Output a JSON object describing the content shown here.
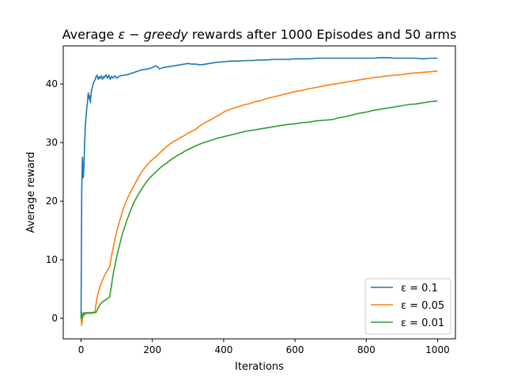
{
  "chart_data": {
    "type": "line",
    "title": {
      "prefix": "Average ",
      "math": "ε − greedy",
      "suffix": " rewards after 1000 Episodes and 50 arms"
    },
    "xlabel": "Iterations",
    "ylabel": "Average reward",
    "xlim": [
      -50,
      1050
    ],
    "ylim": [
      -3.5,
      46.5
    ],
    "xticks": [
      0,
      200,
      400,
      600,
      800,
      1000
    ],
    "yticks": [
      0,
      10,
      20,
      30,
      40
    ],
    "grid": false,
    "legend_position": "lower-right",
    "series": [
      {
        "name": "ε = 0.1",
        "color": "#1f77b4",
        "points": [
          [
            0,
            0
          ],
          [
            2,
            22
          ],
          [
            4,
            27.5
          ],
          [
            6,
            24
          ],
          [
            8,
            26
          ],
          [
            10,
            30
          ],
          [
            12,
            33
          ],
          [
            14,
            34.5
          ],
          [
            16,
            36
          ],
          [
            18,
            37
          ],
          [
            20,
            38.5
          ],
          [
            22,
            37.5
          ],
          [
            24,
            38
          ],
          [
            26,
            36.8
          ],
          [
            28,
            38.5
          ],
          [
            30,
            39
          ],
          [
            32,
            39.6
          ],
          [
            35,
            40.2
          ],
          [
            38,
            40.6
          ],
          [
            40,
            40.8
          ],
          [
            42,
            41.3
          ],
          [
            45,
            41.5
          ],
          [
            48,
            40.8
          ],
          [
            50,
            41.2
          ],
          [
            53,
            40.9
          ],
          [
            56,
            41.4
          ],
          [
            60,
            40.8
          ],
          [
            63,
            41.3
          ],
          [
            66,
            41.1
          ],
          [
            70,
            41.6
          ],
          [
            74,
            41.0
          ],
          [
            78,
            41.5
          ],
          [
            82,
            40.8
          ],
          [
            86,
            41.3
          ],
          [
            90,
            41.0
          ],
          [
            95,
            41.4
          ],
          [
            100,
            41.0
          ],
          [
            110,
            41.4
          ],
          [
            120,
            41.5
          ],
          [
            130,
            41.6
          ],
          [
            140,
            41.8
          ],
          [
            150,
            42.0
          ],
          [
            160,
            42.2
          ],
          [
            170,
            42.4
          ],
          [
            180,
            42.5
          ],
          [
            190,
            42.6
          ],
          [
            200,
            42.8
          ],
          [
            205,
            43.0
          ],
          [
            210,
            43.1
          ],
          [
            215,
            42.9
          ],
          [
            220,
            42.6
          ],
          [
            230,
            42.8
          ],
          [
            240,
            42.9
          ],
          [
            250,
            43.0
          ],
          [
            260,
            43.1
          ],
          [
            270,
            43.2
          ],
          [
            280,
            43.3
          ],
          [
            290,
            43.4
          ],
          [
            300,
            43.5
          ],
          [
            310,
            43.4
          ],
          [
            320,
            43.4
          ],
          [
            330,
            43.3
          ],
          [
            340,
            43.3
          ],
          [
            350,
            43.4
          ],
          [
            360,
            43.5
          ],
          [
            380,
            43.7
          ],
          [
            400,
            43.8
          ],
          [
            420,
            43.9
          ],
          [
            440,
            43.9
          ],
          [
            460,
            44.0
          ],
          [
            480,
            44.0
          ],
          [
            500,
            44.1
          ],
          [
            520,
            44.1
          ],
          [
            540,
            44.2
          ],
          [
            560,
            44.2
          ],
          [
            580,
            44.2
          ],
          [
            600,
            44.3
          ],
          [
            620,
            44.3
          ],
          [
            640,
            44.3
          ],
          [
            660,
            44.4
          ],
          [
            680,
            44.4
          ],
          [
            700,
            44.4
          ],
          [
            720,
            44.4
          ],
          [
            740,
            44.4
          ],
          [
            760,
            44.4
          ],
          [
            780,
            44.4
          ],
          [
            800,
            44.4
          ],
          [
            820,
            44.4
          ],
          [
            840,
            44.5
          ],
          [
            860,
            44.5
          ],
          [
            880,
            44.4
          ],
          [
            900,
            44.4
          ],
          [
            920,
            44.4
          ],
          [
            940,
            44.4
          ],
          [
            960,
            44.3
          ],
          [
            980,
            44.4
          ],
          [
            1000,
            44.4
          ]
        ]
      },
      {
        "name": "ε = 0.05",
        "color": "#ff7f0e",
        "points": [
          [
            0,
            0
          ],
          [
            2,
            -1.2
          ],
          [
            4,
            0.2
          ],
          [
            6,
            0.5
          ],
          [
            8,
            0.8
          ],
          [
            10,
            0.6
          ],
          [
            14,
            0.9
          ],
          [
            18,
            0.8
          ],
          [
            22,
            1.0
          ],
          [
            26,
            0.9
          ],
          [
            30,
            1.0
          ],
          [
            34,
            1.0
          ],
          [
            38,
            1.1
          ],
          [
            40,
            1.5
          ],
          [
            42,
            2.5
          ],
          [
            45,
            3.5
          ],
          [
            50,
            4.8
          ],
          [
            55,
            5.8
          ],
          [
            60,
            6.5
          ],
          [
            65,
            7.2
          ],
          [
            70,
            7.8
          ],
          [
            75,
            8.3
          ],
          [
            80,
            8.8
          ],
          [
            85,
            10.5
          ],
          [
            90,
            12.0
          ],
          [
            95,
            13.5
          ],
          [
            100,
            14.8
          ],
          [
            105,
            16.0
          ],
          [
            110,
            17.0
          ],
          [
            115,
            18.0
          ],
          [
            120,
            19.0
          ],
          [
            130,
            20.5
          ],
          [
            140,
            21.7
          ],
          [
            150,
            22.8
          ],
          [
            160,
            24.0
          ],
          [
            170,
            25.0
          ],
          [
            180,
            25.8
          ],
          [
            190,
            26.5
          ],
          [
            200,
            27.1
          ],
          [
            210,
            27.6
          ],
          [
            220,
            28.2
          ],
          [
            230,
            28.8
          ],
          [
            240,
            29.3
          ],
          [
            250,
            29.8
          ],
          [
            260,
            30.2
          ],
          [
            270,
            30.5
          ],
          [
            280,
            30.9
          ],
          [
            290,
            31.2
          ],
          [
            300,
            31.6
          ],
          [
            310,
            31.9
          ],
          [
            320,
            32.2
          ],
          [
            330,
            32.7
          ],
          [
            340,
            33.1
          ],
          [
            350,
            33.5
          ],
          [
            360,
            33.8
          ],
          [
            370,
            34.1
          ],
          [
            380,
            34.5
          ],
          [
            390,
            34.8
          ],
          [
            400,
            35.2
          ],
          [
            410,
            35.5
          ],
          [
            420,
            35.7
          ],
          [
            430,
            35.9
          ],
          [
            440,
            36.1
          ],
          [
            450,
            36.3
          ],
          [
            460,
            36.5
          ],
          [
            470,
            36.6
          ],
          [
            480,
            36.8
          ],
          [
            490,
            37.0
          ],
          [
            500,
            37.1
          ],
          [
            520,
            37.5
          ],
          [
            540,
            37.8
          ],
          [
            560,
            38.1
          ],
          [
            580,
            38.4
          ],
          [
            600,
            38.7
          ],
          [
            620,
            38.9
          ],
          [
            640,
            39.2
          ],
          [
            660,
            39.4
          ],
          [
            680,
            39.7
          ],
          [
            700,
            39.9
          ],
          [
            720,
            40.1
          ],
          [
            740,
            40.3
          ],
          [
            760,
            40.5
          ],
          [
            780,
            40.7
          ],
          [
            800,
            40.9
          ],
          [
            820,
            41.1
          ],
          [
            840,
            41.2
          ],
          [
            860,
            41.4
          ],
          [
            880,
            41.5
          ],
          [
            900,
            41.6
          ],
          [
            920,
            41.8
          ],
          [
            940,
            41.9
          ],
          [
            960,
            42.0
          ],
          [
            980,
            42.1
          ],
          [
            1000,
            42.2
          ]
        ]
      },
      {
        "name": "ε = 0.01",
        "color": "#2ca02c",
        "points": [
          [
            0,
            0
          ],
          [
            2,
            1.0
          ],
          [
            4,
            0.0
          ],
          [
            6,
            0.6
          ],
          [
            8,
            1.0
          ],
          [
            10,
            0.8
          ],
          [
            14,
            1.0
          ],
          [
            18,
            0.9
          ],
          [
            22,
            1.0
          ],
          [
            26,
            0.8
          ],
          [
            30,
            1.0
          ],
          [
            34,
            0.9
          ],
          [
            38,
            1.0
          ],
          [
            42,
            1.0
          ],
          [
            46,
            1.5
          ],
          [
            50,
            2.0
          ],
          [
            55,
            2.5
          ],
          [
            60,
            2.8
          ],
          [
            65,
            3.0
          ],
          [
            70,
            3.2
          ],
          [
            75,
            3.4
          ],
          [
            80,
            3.6
          ],
          [
            85,
            5.5
          ],
          [
            90,
            7.5
          ],
          [
            95,
            9.0
          ],
          [
            100,
            10.5
          ],
          [
            105,
            11.8
          ],
          [
            110,
            13.0
          ],
          [
            115,
            14.2
          ],
          [
            120,
            15.2
          ],
          [
            130,
            17.0
          ],
          [
            140,
            18.6
          ],
          [
            150,
            20.0
          ],
          [
            160,
            21.1
          ],
          [
            170,
            22.1
          ],
          [
            180,
            23.0
          ],
          [
            190,
            23.8
          ],
          [
            200,
            24.4
          ],
          [
            210,
            25.0
          ],
          [
            220,
            25.6
          ],
          [
            230,
            26.1
          ],
          [
            240,
            26.5
          ],
          [
            250,
            27.0
          ],
          [
            260,
            27.4
          ],
          [
            270,
            27.8
          ],
          [
            280,
            28.1
          ],
          [
            290,
            28.5
          ],
          [
            300,
            28.8
          ],
          [
            320,
            29.4
          ],
          [
            340,
            29.9
          ],
          [
            360,
            30.3
          ],
          [
            380,
            30.7
          ],
          [
            400,
            31.0
          ],
          [
            420,
            31.3
          ],
          [
            440,
            31.6
          ],
          [
            460,
            31.9
          ],
          [
            480,
            32.1
          ],
          [
            500,
            32.3
          ],
          [
            520,
            32.5
          ],
          [
            540,
            32.7
          ],
          [
            560,
            32.9
          ],
          [
            580,
            33.1
          ],
          [
            600,
            33.2
          ],
          [
            620,
            33.4
          ],
          [
            640,
            33.5
          ],
          [
            660,
            33.7
          ],
          [
            680,
            33.8
          ],
          [
            700,
            33.9
          ],
          [
            710,
            34.0
          ],
          [
            720,
            34.2
          ],
          [
            740,
            34.4
          ],
          [
            760,
            34.7
          ],
          [
            780,
            35.0
          ],
          [
            800,
            35.2
          ],
          [
            820,
            35.5
          ],
          [
            840,
            35.7
          ],
          [
            860,
            35.9
          ],
          [
            880,
            36.1
          ],
          [
            900,
            36.3
          ],
          [
            920,
            36.5
          ],
          [
            940,
            36.6
          ],
          [
            960,
            36.8
          ],
          [
            980,
            37.0
          ],
          [
            1000,
            37.1
          ]
        ]
      }
    ]
  }
}
